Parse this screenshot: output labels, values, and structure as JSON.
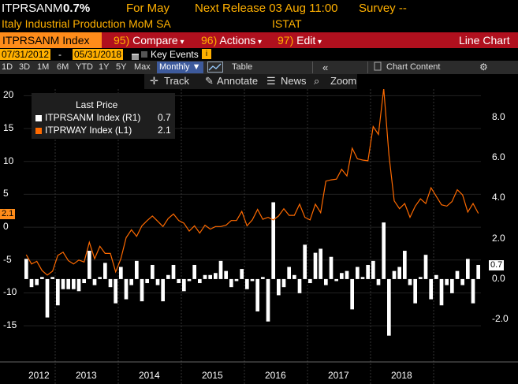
{
  "header": {
    "ticker": "ITPRSANM",
    "value": "0.7%",
    "for_label": "For May",
    "next_release": "Next Release 03 Aug 11:00",
    "survey": "Survey --",
    "description": "Italy Industrial Production MoM SA",
    "source": "ISTAT"
  },
  "command_bar": {
    "security": "ITPRSANM Index",
    "compare_key": "95)",
    "compare": "Compare",
    "actions_key": "96)",
    "actions": "Actions",
    "edit_key": "97)",
    "edit": "Edit",
    "view": "Line Chart"
  },
  "date_range": {
    "start": "07/31/2012",
    "end": "05/31/2018",
    "key_events": "Key Events"
  },
  "toolbar": {
    "periods": [
      "1D",
      "3D",
      "1M",
      "6M",
      "YTD",
      "1Y",
      "5Y",
      "Max"
    ],
    "frequency": "Monthly",
    "table": "Table",
    "chart_content": "Chart Content"
  },
  "chart_tools": {
    "track": "Track",
    "annotate": "Annotate",
    "news": "News",
    "zoom": "Zoom"
  },
  "legend": {
    "title": "Last Price",
    "items": [
      {
        "label": "ITPRSANM Index  (R1)",
        "value": "0.7"
      },
      {
        "label": "ITPRWAY Index  (L1)",
        "value": "2.1"
      }
    ]
  },
  "colors": {
    "orange": "#ff6a00",
    "amber": "#ffb000",
    "bar_white": "#ffffff",
    "command_bar": "#b0101e"
  },
  "icons": [
    "track-icon",
    "annotate-icon",
    "news-icon",
    "zoom-icon",
    "chart-style-icon",
    "collapse-icon",
    "gear-icon"
  ],
  "chart_data": {
    "type": "line",
    "x_label_years": [
      "2012",
      "2013",
      "2014",
      "2015",
      "2016",
      "2017",
      "2018"
    ],
    "left_axis": {
      "ticks": [
        20,
        15,
        10,
        5,
        0,
        -5,
        -10,
        -15
      ],
      "ylim": [
        -20.5,
        21
      ]
    },
    "right_axis": {
      "ticks": [
        "8.0",
        "6.0",
        "4.0",
        "2.0",
        "0.0",
        "-2.0"
      ],
      "ylim": [
        -4.1,
        9.4
      ]
    },
    "last_value_tags": {
      "left": "2.1",
      "right": "0.7"
    },
    "series": [
      {
        "name": "ITPRSANM Index (R1)",
        "type": "bar",
        "axis": "right",
        "values": [
          1.0,
          -0.4,
          -0.3,
          0.1,
          -1.9,
          0.1,
          -1.3,
          -0.5,
          -0.5,
          -0.5,
          -0.6,
          -0.2,
          1.4,
          -0.3,
          0.1,
          0.8,
          -0.4,
          -1.2,
          0.6,
          -1.0,
          -0.3,
          0.9,
          -1.1,
          -0.2,
          0.7,
          -0.3,
          -1.1,
          0.2,
          0.7,
          -0.2,
          -0.6,
          -0.1,
          0.7,
          -0.2,
          0.2,
          0.2,
          0.3,
          0.9,
          0.4,
          -0.4,
          -0.1,
          0.5,
          -0.5,
          -0.1,
          -1.6,
          0.1,
          -2.1,
          3.8,
          -0.8,
          -0.4,
          0.6,
          0.2,
          -0.7,
          1.7,
          -0.2,
          1.3,
          1.5,
          -0.3,
          1.1,
          -0.1,
          0.3,
          0.4,
          -1.5,
          0.6,
          0.1,
          0.7,
          0.9,
          -0.3,
          2.8,
          -2.8,
          0.4,
          0.6,
          1.4,
          -0.3,
          -1.2,
          0.1,
          1.2,
          -1.0,
          0.2,
          -1.3,
          -0.3,
          -0.7,
          0.4,
          -0.3,
          1.0,
          -1.2,
          0.7
        ]
      },
      {
        "name": "ITPRWAY Index (L1)",
        "type": "line",
        "axis": "left",
        "values": [
          -4.2,
          -5.6,
          -5.2,
          -6.6,
          -7.3,
          -6.7,
          -4.3,
          -3.8,
          -5.1,
          -5.6,
          -5.0,
          -5.3,
          -2.3,
          -4.8,
          -2.9,
          -4.0,
          -4.0,
          -6.8,
          -4.8,
          -1.6,
          -0.4,
          -1.4,
          0.2,
          1.0,
          1.7,
          0.9,
          0.1,
          1.3,
          2.0,
          1.0,
          0.6,
          -0.6,
          0.2,
          -0.9,
          0.3,
          -0.3,
          0.1,
          0.1,
          0.3,
          1.0,
          1.0,
          2.4,
          0.2,
          1.1,
          2.7,
          1.2,
          1.5,
          1.1,
          1.7,
          2.8,
          1.8,
          1.8,
          3.5,
          1.5,
          1.1,
          3.5,
          2.2,
          7.0,
          7.2,
          7.3,
          8.8,
          7.8,
          12.0,
          10.4,
          10.2,
          10.1,
          15.3,
          14.1,
          21.1,
          11.0,
          4.0,
          2.8,
          3.6,
          1.5,
          3.2,
          4.3,
          3.6,
          6.0,
          4.7,
          3.4,
          3.2,
          3.9,
          5.7,
          4.9,
          2.3,
          3.6,
          2.1
        ]
      }
    ]
  }
}
